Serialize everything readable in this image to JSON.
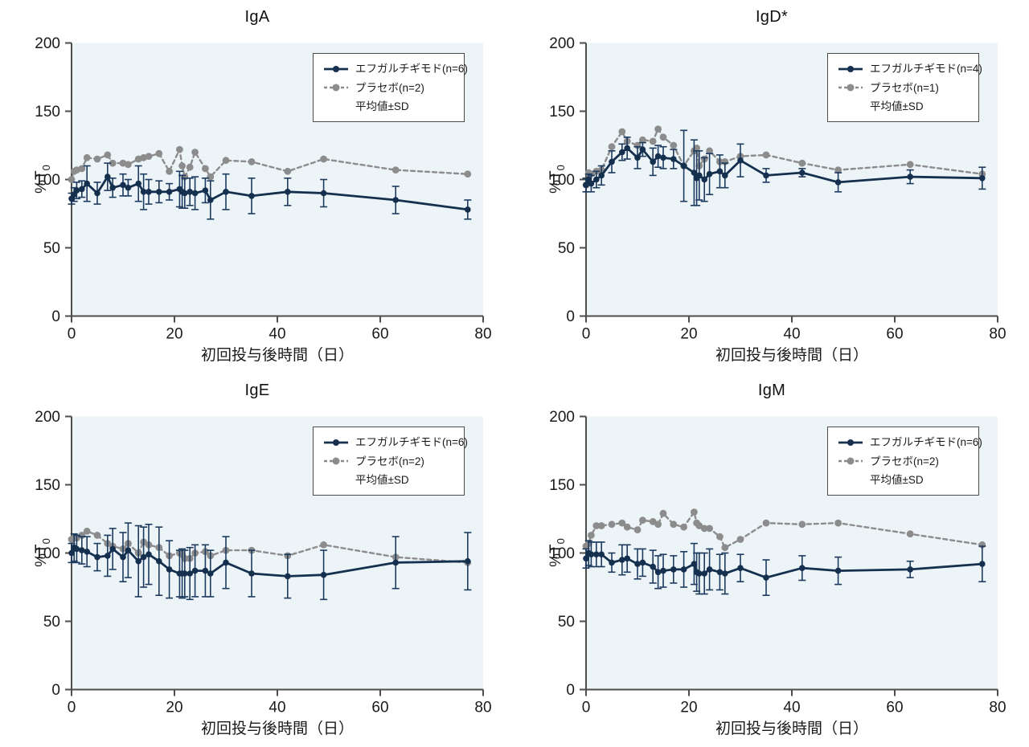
{
  "figure": {
    "kind": "2x2 line chart panel, immunoglobulin levels after first dose",
    "colors": {
      "treatment": "#15304f",
      "treatment_errorbar": "#1d3a5f",
      "placebo": "#8c8c8c",
      "plot_bg": "#ecf4f8",
      "axis": "#4d4d4d",
      "text": "#1a1a1a",
      "legend_border": "#4a4a4a",
      "legend_bg": "#ffffff"
    }
  },
  "axis": {
    "xlabel": "初回投与後時間（日）",
    "ylabel_main": "%T",
    "ylabel_sub": "0",
    "xticks": [
      0,
      20,
      40,
      60,
      80
    ],
    "yticks": [
      0,
      50,
      100,
      150,
      200
    ]
  },
  "legend": {
    "mean_sd_label": "平均値±SD"
  },
  "chart_data": [
    {
      "type": "line",
      "title": "IgA",
      "xlabel": "初回投与後時間（日）",
      "ylabel": "%T0",
      "xlim": [
        0,
        80
      ],
      "ylim": [
        0,
        200
      ],
      "grid": false,
      "legend_position": "top-right",
      "x": [
        0,
        0.5,
        1,
        2,
        3,
        5,
        7,
        8,
        10,
        11,
        13,
        14,
        15,
        17,
        19,
        21,
        21.5,
        22,
        23,
        24,
        26,
        27,
        30,
        35,
        42,
        49,
        63,
        77
      ],
      "series": [
        {
          "name": "エフガルチギモド(n=6)",
          "style": "solid",
          "color_key": "treatment",
          "values": [
            86,
            89,
            92,
            93,
            97,
            90,
            102,
            94,
            96,
            94,
            97,
            91,
            91,
            91,
            91,
            93,
            91,
            90,
            91,
            90,
            92,
            85,
            91,
            88,
            91,
            90,
            85,
            78
          ],
          "sd": [
            4,
            5,
            6,
            6,
            13,
            8,
            10,
            7,
            8,
            6,
            13,
            13,
            9,
            8,
            6,
            13,
            12,
            11,
            10,
            12,
            9,
            14,
            13,
            13,
            10,
            10,
            10,
            7
          ]
        },
        {
          "name": "プラセボ(n=2)",
          "style": "dashed",
          "color_key": "placebo",
          "values": [
            100,
            106,
            107,
            108,
            116,
            115,
            118,
            112,
            112,
            111,
            115,
            116,
            117,
            119,
            106,
            122,
            110,
            102,
            109,
            120,
            108,
            102,
            114,
            113,
            106,
            115,
            107,
            104
          ]
        }
      ]
    },
    {
      "type": "line",
      "title": "IgD*",
      "xlabel": "初回投与後時間（日）",
      "ylabel": "%T0",
      "xlim": [
        0,
        80
      ],
      "ylim": [
        0,
        200
      ],
      "grid": false,
      "legend_position": "top-right",
      "x": [
        0,
        0.5,
        1,
        2,
        3,
        5,
        7,
        8,
        10,
        11,
        13,
        14,
        15,
        17,
        19,
        21,
        21.5,
        22,
        23,
        24,
        26,
        27,
        30,
        35,
        42,
        49,
        63,
        77
      ],
      "series": [
        {
          "name": "エフガルチギモド(n=4)",
          "style": "solid",
          "color_key": "treatment",
          "values": [
            96,
            100,
            97,
            100,
            103,
            113,
            120,
            123,
            116,
            122,
            113,
            117,
            116,
            115,
            110,
            105,
            101,
            103,
            100,
            104,
            106,
            103,
            114,
            103,
            105,
            98,
            102,
            101
          ],
          "sd": [
            5,
            4,
            6,
            6,
            7,
            8,
            6,
            8,
            8,
            5,
            10,
            8,
            8,
            7,
            26,
            24,
            20,
            18,
            16,
            15,
            12,
            9,
            12,
            5,
            3,
            7,
            5,
            8
          ]
        },
        {
          "name": "プラセボ(n=1)",
          "style": "dashed",
          "color_key": "placebo",
          "values": [
            96,
            105,
            104,
            106,
            107,
            124,
            135,
            128,
            125,
            129,
            128,
            137,
            131,
            125,
            110,
            121,
            123,
            110,
            115,
            121,
            113,
            113,
            117,
            118,
            112,
            107,
            111,
            104
          ]
        }
      ]
    },
    {
      "type": "line",
      "title": "IgE",
      "xlabel": "初回投与後時間（日）",
      "ylabel": "%T0",
      "xlim": [
        0,
        80
      ],
      "ylim": [
        0,
        200
      ],
      "grid": false,
      "legend_position": "top-right",
      "x": [
        0,
        0.5,
        1,
        2,
        3,
        5,
        7,
        8,
        10,
        11,
        13,
        14,
        15,
        17,
        19,
        21,
        21.5,
        22,
        23,
        24,
        26,
        27,
        30,
        35,
        42,
        49,
        63,
        77
      ],
      "series": [
        {
          "name": "エフガルチギモド(n=6)",
          "style": "solid",
          "color_key": "treatment",
          "values": [
            100,
            104,
            103,
            102,
            101,
            97,
            98,
            103,
            97,
            102,
            94,
            97,
            99,
            94,
            88,
            85,
            85,
            85,
            85,
            87,
            87,
            85,
            93,
            85,
            83,
            84,
            93,
            94
          ],
          "sd": [
            7,
            10,
            10,
            10,
            11,
            10,
            15,
            15,
            18,
            20,
            26,
            22,
            22,
            25,
            21,
            17,
            18,
            17,
            19,
            19,
            19,
            17,
            19,
            17,
            16,
            18,
            19,
            21
          ]
        },
        {
          "name": "プラセボ(n=2)",
          "style": "dashed",
          "color_key": "placebo",
          "values": [
            110,
            111,
            111,
            113,
            116,
            113,
            107,
            105,
            103,
            107,
            100,
            108,
            106,
            104,
            98,
            100,
            99,
            96,
            96,
            100,
            101,
            98,
            102,
            102,
            98,
            106,
            97,
            93
          ]
        }
      ]
    },
    {
      "type": "line",
      "title": "IgM",
      "xlabel": "初回投与後時間（日）",
      "ylabel": "%T0",
      "xlim": [
        0,
        80
      ],
      "ylim": [
        0,
        200
      ],
      "grid": false,
      "legend_position": "top-right",
      "x": [
        0,
        0.5,
        1,
        2,
        3,
        5,
        7,
        8,
        10,
        11,
        13,
        14,
        15,
        17,
        19,
        21,
        21.5,
        22,
        23,
        24,
        26,
        27,
        30,
        35,
        42,
        49,
        63,
        77
      ],
      "series": [
        {
          "name": "エフガルチギモド(n=6)",
          "style": "solid",
          "color_key": "treatment",
          "values": [
            96,
            100,
            99,
            99,
            99,
            93,
            95,
            96,
            92,
            93,
            90,
            86,
            87,
            88,
            88,
            92,
            86,
            85,
            85,
            88,
            86,
            85,
            89,
            82,
            89,
            87,
            88,
            92
          ],
          "sd": [
            7,
            9,
            9,
            9,
            9,
            7,
            11,
            10,
            11,
            10,
            12,
            12,
            12,
            10,
            13,
            15,
            14,
            15,
            15,
            15,
            13,
            15,
            10,
            13,
            9,
            10,
            6,
            13
          ]
        },
        {
          "name": "プラセボ(n=2)",
          "style": "dashed",
          "color_key": "placebo",
          "values": [
            105,
            107,
            113,
            120,
            120,
            121,
            122,
            119,
            117,
            124,
            123,
            121,
            129,
            121,
            119,
            130,
            122,
            120,
            118,
            118,
            112,
            104,
            110,
            122,
            121,
            122,
            114,
            106
          ]
        }
      ]
    }
  ]
}
